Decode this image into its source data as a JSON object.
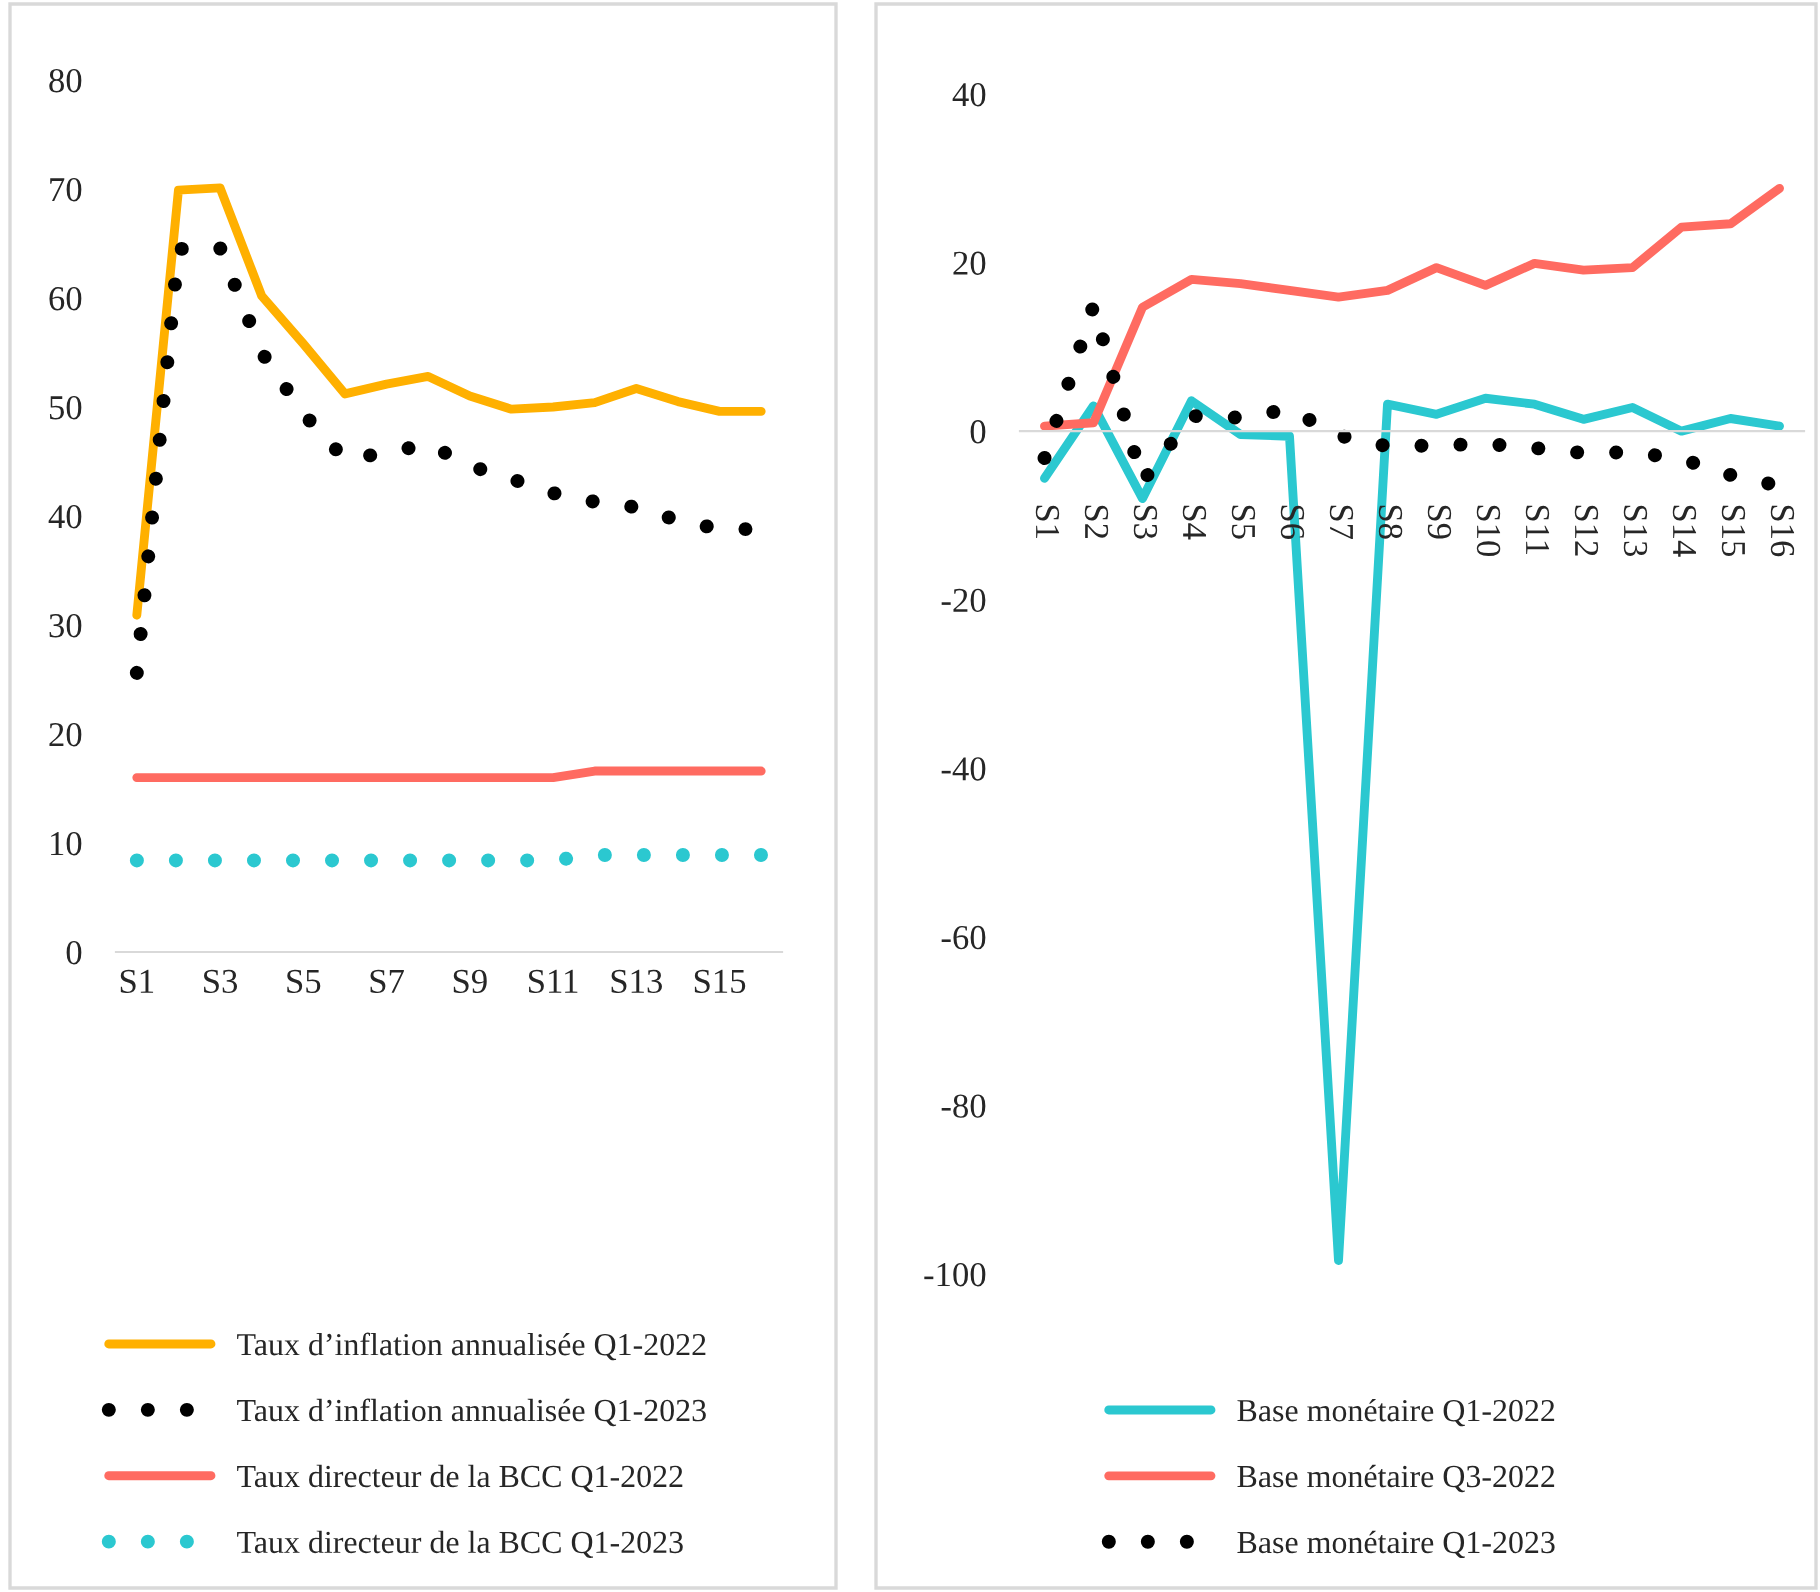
{
  "chart_data": [
    {
      "type": "line",
      "categories": [
        "S1",
        null,
        "S3",
        null,
        "S5",
        null,
        "S7",
        null,
        "S9",
        null,
        "S11",
        null,
        "S13",
        null,
        "S15",
        null
      ],
      "ylim": [
        0,
        80
      ],
      "yticks": [
        0,
        10,
        20,
        30,
        40,
        50,
        60,
        70,
        80
      ],
      "legend": "bottom",
      "grid": false,
      "series": [
        {
          "name": "Taux d’inflation annualisée Q1-2022",
          "color": "#ffb000",
          "line_style": "solid",
          "values": [
            30.9,
            69.9,
            70.1,
            60.2,
            55.8,
            51.2,
            52.1,
            52.8,
            51.0,
            49.8,
            50.0,
            50.4,
            51.7,
            50.5,
            49.6,
            49.6
          ]
        },
        {
          "name": "Taux d’inflation annualisée Q1-2023",
          "color": "#000000",
          "line_style": "dotted",
          "values": [
            25.6,
            64.5,
            64.6,
            55.0,
            49.4,
            45.2,
            45.8,
            46.6,
            44.6,
            43.4,
            42.1,
            41.3,
            40.8,
            39.6,
            38.8,
            38.8
          ]
        },
        {
          "name": "Taux directeur de la BCC Q1-2022",
          "color": "#ff6b61",
          "line_style": "solid",
          "values": [
            16.0,
            16.0,
            16.0,
            16.0,
            16.0,
            16.0,
            16.0,
            16.0,
            16.0,
            16.0,
            16.0,
            16.6,
            16.6,
            16.6,
            16.6,
            16.6
          ]
        },
        {
          "name": "Taux directeur de la BCC Q1-2023",
          "color": "#2bc8d0",
          "line_style": "dotted",
          "values": [
            8.4,
            8.4,
            8.4,
            8.4,
            8.4,
            8.4,
            8.4,
            8.4,
            8.4,
            8.4,
            8.4,
            8.9,
            8.9,
            8.9,
            8.9,
            8.9
          ]
        }
      ]
    },
    {
      "type": "line",
      "categories": [
        "S1",
        "S2",
        "S3",
        "S4",
        "S5",
        "S6",
        "S7",
        "S8",
        "S9",
        "S10",
        "S11",
        "S12",
        "S13",
        "S14",
        "S15",
        "S16"
      ],
      "ylim": [
        -100,
        40
      ],
      "yticks": [
        {
          "value": -100,
          "label": "-100"
        },
        {
          "value": -80,
          "label": "-80"
        },
        {
          "value": -60,
          "label": "-60"
        },
        {
          "value": -40,
          "label": "-40"
        },
        {
          "value": -20,
          "label": "-20"
        },
        0,
        20,
        40
      ],
      "legend": "bottom",
      "grid": false,
      "series": [
        {
          "name": "Base monétaire Q1-2022",
          "color": "#2bc8d0",
          "line_style": "solid",
          "values": [
            -5.6,
            3.0,
            -8.0,
            3.6,
            -0.4,
            -0.6,
            -98.4,
            3.2,
            2.0,
            3.9,
            3.2,
            1.4,
            2.8,
            0.0,
            1.5,
            0.6
          ]
        },
        {
          "name": "Base monétaire Q3-2022",
          "color": "#ff6b61",
          "line_style": "solid",
          "values": [
            0.6,
            1.0,
            14.7,
            18.0,
            17.5,
            16.7,
            15.9,
            16.7,
            19.4,
            17.3,
            19.9,
            19.1,
            19.4,
            24.2,
            24.6,
            28.8
          ]
        },
        {
          "name": "Base monétaire Q1-2023",
          "color": "#000000",
          "line_style": "dotted",
          "values": [
            -3.2,
            14.9,
            -6.0,
            1.8,
            1.6,
            2.6,
            -0.5,
            -1.8,
            -1.7,
            -1.5,
            -2.0,
            -2.6,
            -2.5,
            -3.3,
            -5.2,
            -6.5
          ]
        }
      ]
    }
  ]
}
